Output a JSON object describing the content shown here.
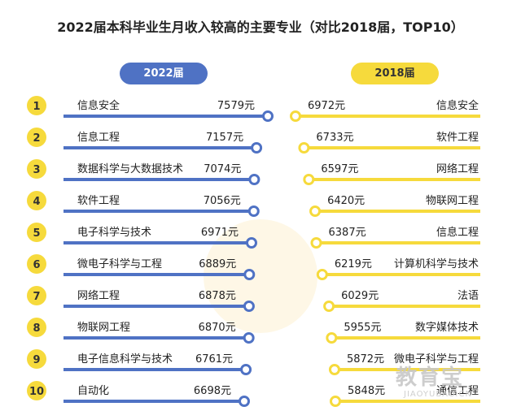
{
  "chart_data": {
    "type": "bar",
    "title": "2022届本科毕业生月收入较高的主要专业（对比2018届，TOP10）",
    "ranks": [
      "1",
      "2",
      "3",
      "4",
      "5",
      "6",
      "7",
      "8",
      "9",
      "10"
    ],
    "series": [
      {
        "name": "2022届",
        "color": "#4f72c4",
        "categories": [
          "信息安全",
          "信息工程",
          "数据科学与大数据技术",
          "软件工程",
          "电子科学与技术",
          "微电子科学与工程",
          "网络工程",
          "物联网工程",
          "电子信息科学与技术",
          "自动化"
        ],
        "values": [
          7579,
          7157,
          7074,
          7056,
          6971,
          6889,
          6878,
          6870,
          6761,
          6698
        ],
        "value_labels": [
          "7579元",
          "7157元",
          "7074元",
          "7056元",
          "6971元",
          "6889元",
          "6878元",
          "6870元",
          "6761元",
          "6698元"
        ]
      },
      {
        "name": "2018届",
        "color": "#f6da3c",
        "categories": [
          "信息安全",
          "软件工程",
          "网络工程",
          "物联网工程",
          "信息工程",
          "计算机科学与技术",
          "法语",
          "数字媒体技术",
          "微电子科学与工程",
          "通信工程"
        ],
        "values": [
          6972,
          6733,
          6597,
          6420,
          6387,
          6219,
          6029,
          5955,
          5872,
          5848
        ],
        "value_labels": [
          "6972元",
          "6733元",
          "6597元",
          "6420元",
          "6387元",
          "6219元",
          "6029元",
          "5955元",
          "5872元",
          "5848元"
        ]
      }
    ]
  },
  "watermark": {
    "main": "教育宝",
    "sub": "JIAOYUBAO.CN"
  }
}
